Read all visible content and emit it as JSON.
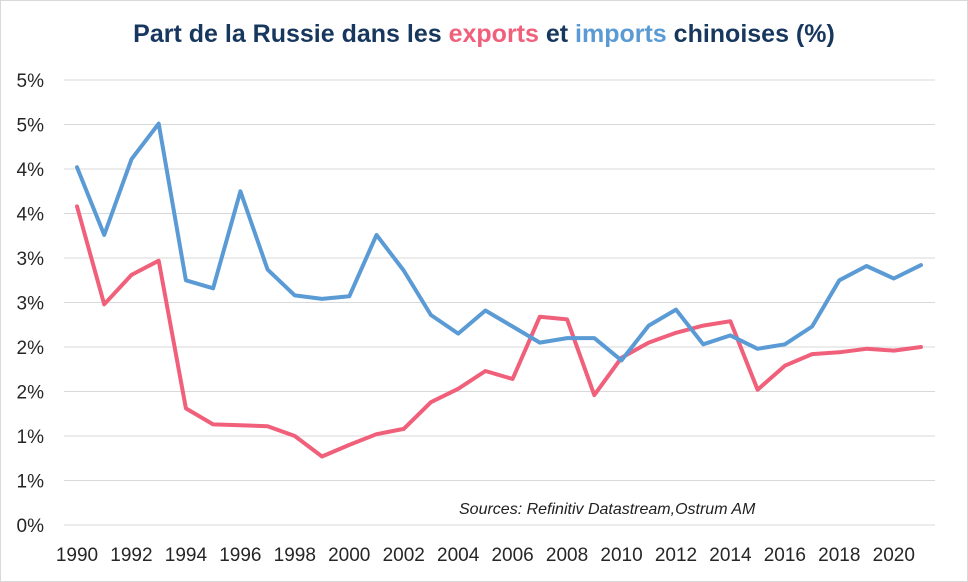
{
  "title": {
    "part1": "Part de la Russie dans les ",
    "exports_word": "exports",
    "part2": " et ",
    "imports_word": "imports",
    "part3": " chinoises (%)"
  },
  "source": "Sources: Refinitiv Datastream,Ostrum AM",
  "chart_data": {
    "type": "line",
    "title": "Part de la Russie dans les exports et imports chinoises (%)",
    "xlabel": "",
    "ylabel": "",
    "xlim": [
      1990,
      2021
    ],
    "ylim": [
      0,
      5
    ],
    "grid": true,
    "legend": "none (series identified by colored words in title)",
    "x_tick_labels": [
      "1990",
      "1992",
      "1994",
      "1996",
      "1998",
      "2000",
      "2002",
      "2004",
      "2006",
      "2008",
      "2010",
      "2012",
      "2014",
      "2016",
      "2018",
      "2020"
    ],
    "y_tick_labels": [
      "0%",
      "1%",
      "1%",
      "2%",
      "2%",
      "3%",
      "3%",
      "4%",
      "4%",
      "5%",
      "5%"
    ],
    "y_tick_values": [
      0,
      0.5,
      1,
      1.5,
      2,
      2.5,
      3,
      3.5,
      4,
      4.5,
      5
    ],
    "x": [
      1990,
      1991,
      1992,
      1993,
      1994,
      1995,
      1996,
      1997,
      1998,
      1999,
      2000,
      2001,
      2002,
      2003,
      2004,
      2005,
      2006,
      2007,
      2008,
      2009,
      2010,
      2011,
      2012,
      2013,
      2014,
      2015,
      2016,
      2017,
      2018,
      2019,
      2020,
      2021
    ],
    "series": [
      {
        "name": "exports",
        "color": "#f0607a",
        "values": [
          3.58,
          2.48,
          2.81,
          2.97,
          1.31,
          1.13,
          1.12,
          1.11,
          1.0,
          0.77,
          0.9,
          1.02,
          1.08,
          1.38,
          1.53,
          1.73,
          1.64,
          2.34,
          2.31,
          1.46,
          1.88,
          2.05,
          2.16,
          2.24,
          2.29,
          1.52,
          1.79,
          1.92,
          1.94,
          1.98,
          1.96,
          2.0
        ]
      },
      {
        "name": "imports",
        "color": "#5b9bd5",
        "values": [
          4.02,
          3.26,
          4.11,
          4.51,
          2.75,
          2.66,
          3.75,
          2.87,
          2.58,
          2.54,
          2.57,
          3.26,
          2.86,
          2.36,
          2.15,
          2.41,
          2.23,
          2.05,
          2.1,
          2.1,
          1.85,
          2.24,
          2.42,
          2.03,
          2.13,
          1.98,
          2.03,
          2.23,
          2.75,
          2.91,
          2.77,
          2.92
        ]
      }
    ]
  }
}
